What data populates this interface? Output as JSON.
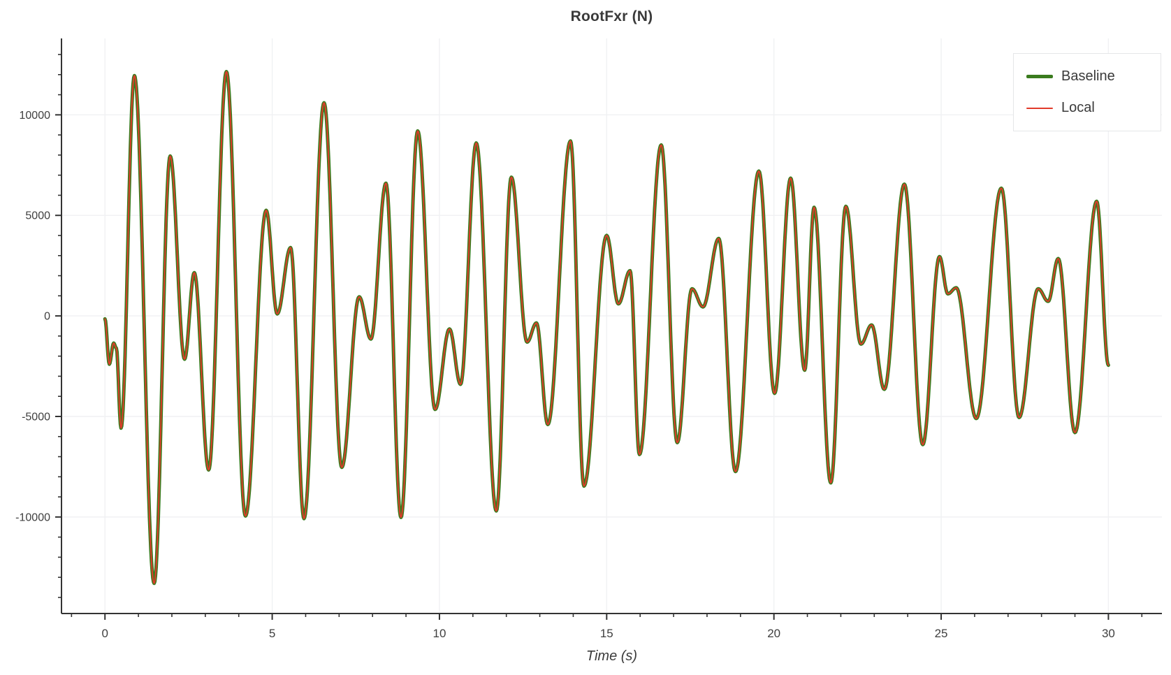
{
  "chart": {
    "title": "RootFxr (N)",
    "xlabel": "Time (s)"
  },
  "legend": {
    "items": [
      {
        "label": "Baseline",
        "color": "#3a7b1e",
        "thickness": 5
      },
      {
        "label": "Local",
        "color": "#e13a2a",
        "thickness": 2
      }
    ]
  },
  "colors": {
    "axis": "#333333",
    "grid": "#f0f1f3",
    "tick_label": "#3f3f3f",
    "title": "#3a3a3a",
    "background": "#ffffff",
    "legend_border": "#e5e6e8"
  },
  "chart_data": {
    "type": "line",
    "title": "RootFxr (N)",
    "xlabel": "Time (s)",
    "ylabel": "",
    "xlim": [
      -1.3,
      31.6
    ],
    "ylim": [
      -14800,
      13800
    ],
    "x_major_ticks": [
      0,
      5,
      10,
      15,
      20,
      25,
      30
    ],
    "x_minor_step": 1,
    "y_major_ticks": [
      -10000,
      -5000,
      0,
      5000,
      10000
    ],
    "y_minor_step": 1000,
    "grid": true,
    "legend_position": "top-right",
    "series": [
      {
        "name": "Baseline",
        "color": "#3a7b1e",
        "line_width": 5,
        "data": "keypoints"
      },
      {
        "name": "Local",
        "color": "#e13a2a",
        "line_width": 1.9,
        "data": "keypoints"
      }
    ],
    "keypoints_note": "Oscillating force signal; extrema (t seconds, force N) read from plot. Baseline and Local curves overlap almost exactly; smooth oscillation between extrema.",
    "keypoints": [
      [
        0.0,
        -150
      ],
      [
        0.13,
        -2400
      ],
      [
        0.26,
        -1350
      ],
      [
        0.34,
        -1600
      ],
      [
        0.48,
        -5580
      ],
      [
        0.88,
        11950
      ],
      [
        1.47,
        -13300
      ],
      [
        1.95,
        7950
      ],
      [
        2.38,
        -2150
      ],
      [
        2.67,
        2150
      ],
      [
        3.1,
        -7660
      ],
      [
        3.63,
        12150
      ],
      [
        4.2,
        -9950
      ],
      [
        4.82,
        5250
      ],
      [
        5.15,
        100
      ],
      [
        5.55,
        3400
      ],
      [
        5.95,
        -10080
      ],
      [
        6.55,
        10600
      ],
      [
        7.08,
        -7530
      ],
      [
        7.6,
        950
      ],
      [
        7.95,
        -1150
      ],
      [
        8.4,
        6600
      ],
      [
        8.85,
        -10020
      ],
      [
        9.35,
        9200
      ],
      [
        9.87,
        -4650
      ],
      [
        10.3,
        -650
      ],
      [
        10.63,
        -3400
      ],
      [
        11.1,
        8600
      ],
      [
        11.7,
        -9700
      ],
      [
        12.15,
        6900
      ],
      [
        12.62,
        -1300
      ],
      [
        12.9,
        -350
      ],
      [
        13.24,
        -5400
      ],
      [
        13.92,
        8700
      ],
      [
        14.32,
        -8460
      ],
      [
        15.0,
        4000
      ],
      [
        15.35,
        600
      ],
      [
        15.7,
        2250
      ],
      [
        15.98,
        -6890
      ],
      [
        16.63,
        8500
      ],
      [
        17.11,
        -6300
      ],
      [
        17.55,
        1350
      ],
      [
        17.88,
        450
      ],
      [
        18.35,
        3850
      ],
      [
        18.85,
        -7740
      ],
      [
        19.55,
        7200
      ],
      [
        20.02,
        -3850
      ],
      [
        20.5,
        6850
      ],
      [
        20.92,
        -2700
      ],
      [
        21.2,
        5400
      ],
      [
        21.7,
        -8300
      ],
      [
        22.15,
        5450
      ],
      [
        22.6,
        -1400
      ],
      [
        22.92,
        -450
      ],
      [
        23.3,
        -3650
      ],
      [
        23.9,
        6550
      ],
      [
        24.45,
        -6400
      ],
      [
        24.95,
        2950
      ],
      [
        25.2,
        1100
      ],
      [
        25.45,
        1400
      ],
      [
        26.05,
        -5100
      ],
      [
        26.8,
        6350
      ],
      [
        27.33,
        -5050
      ],
      [
        27.9,
        1350
      ],
      [
        28.2,
        725
      ],
      [
        28.5,
        2850
      ],
      [
        29.0,
        -5800
      ],
      [
        29.65,
        5700
      ],
      [
        30.0,
        -2450
      ]
    ]
  }
}
